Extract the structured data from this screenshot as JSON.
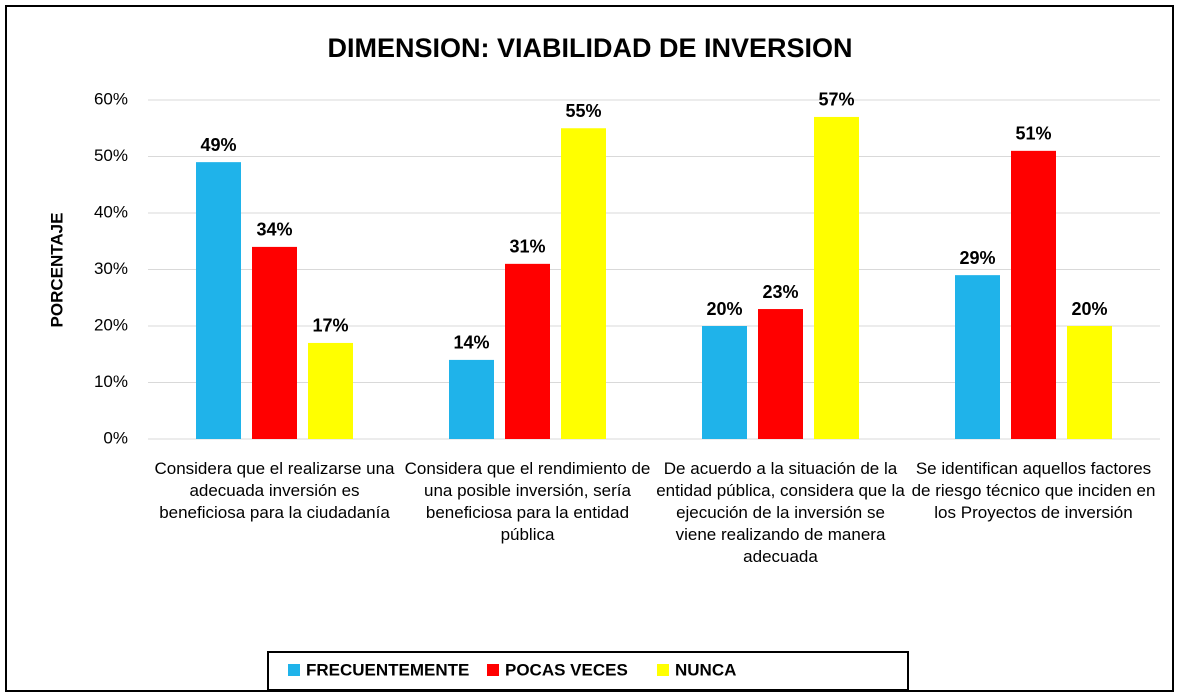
{
  "chart_data": {
    "type": "bar",
    "title": "DIMENSION: VIABILIDAD DE INVERSION",
    "y_label": "PORCENTAJE",
    "categories": [
      "Considera que el realizarse una adecuada inversión es beneficiosa para la ciudadanía",
      "Considera que el rendimiento de una posible inversión, sería beneficiosa para la entidad pública",
      "De acuerdo a la situación de la entidad pública, considera que la ejecución de la inversión se viene realizando de manera adecuada",
      "Se identifican aquellos factores de riesgo técnico que inciden en los Proyectos de inversión"
    ],
    "series": [
      {
        "name": "FRECUENTEMENTE",
        "color": "#1fb3ea",
        "values": [
          49,
          14,
          20,
          29
        ],
        "value_labels": [
          "49%",
          "14%",
          "20%",
          "29%"
        ]
      },
      {
        "name": "POCAS VECES",
        "color": "#ff0000",
        "values": [
          34,
          31,
          23,
          51
        ],
        "value_labels": [
          "34%",
          "31%",
          "23%",
          "51%"
        ]
      },
      {
        "name": "NUNCA",
        "color": "#ffff00",
        "values": [
          17,
          55,
          57,
          20
        ],
        "value_labels": [
          "17%",
          "55%",
          "57%",
          "20%"
        ]
      }
    ],
    "ylim": [
      0,
      60
    ],
    "yticks": [
      {
        "value": 0,
        "label": "0%"
      },
      {
        "value": 10,
        "label": "10%"
      },
      {
        "value": 20,
        "label": "20%"
      },
      {
        "value": 30,
        "label": "30%"
      },
      {
        "value": 40,
        "label": "40%"
      },
      {
        "value": 50,
        "label": "50%"
      },
      {
        "value": 60,
        "label": "60%"
      }
    ],
    "grid": true,
    "legend": "bottom"
  }
}
